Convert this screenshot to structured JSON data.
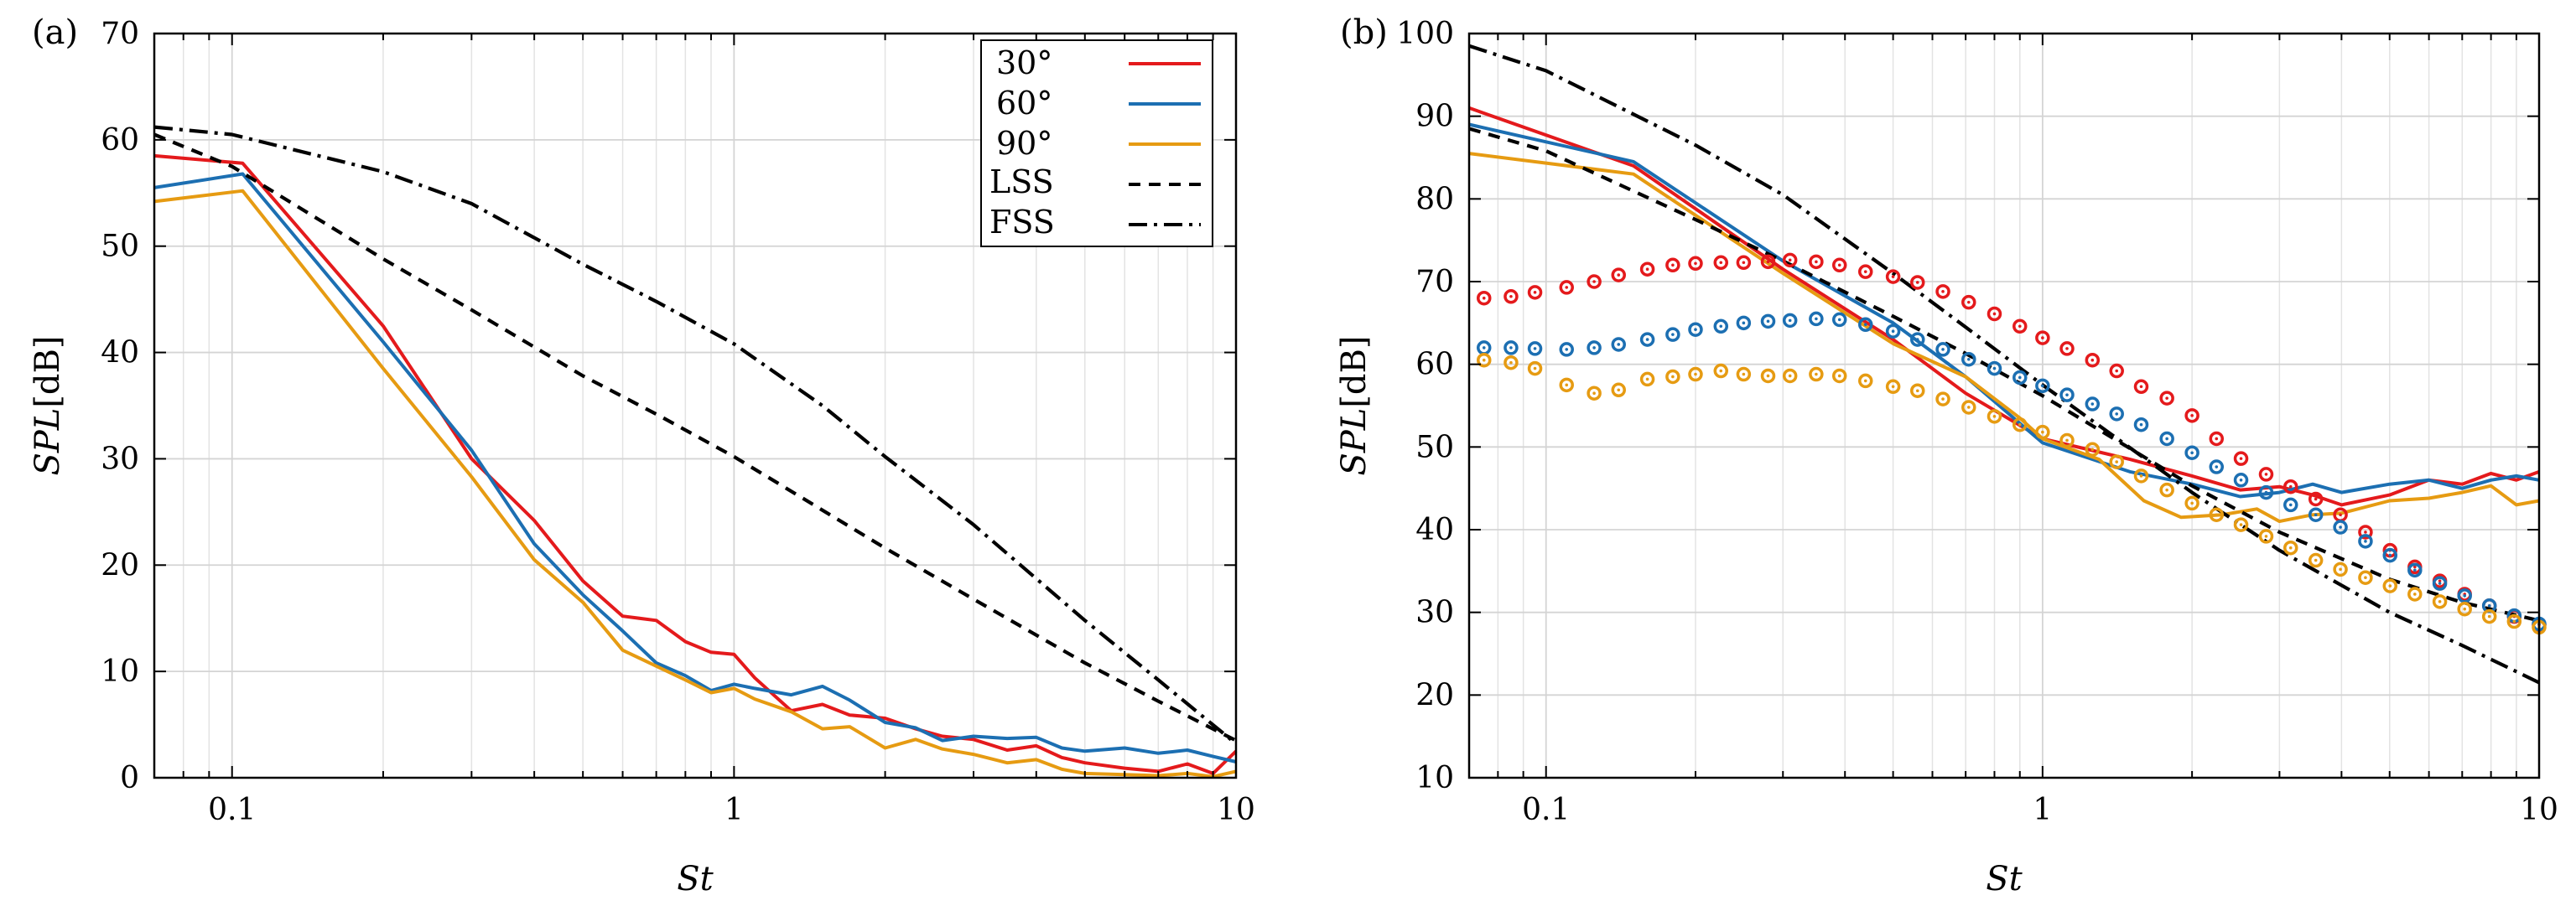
{
  "chart_data": [
    {
      "type": "line",
      "panel_label": "(a)",
      "xlabel": "St",
      "ylabel": "SPL",
      "ylabel_unit": "[dB]",
      "xscale": "log",
      "xlim": [
        0.07,
        10
      ],
      "ylim": [
        0,
        70
      ],
      "xticks": [
        {
          "v": 0.1,
          "label": "0.1"
        },
        {
          "v": 1,
          "label": "1"
        },
        {
          "v": 10,
          "label": "10"
        }
      ],
      "yticks": [
        {
          "v": 0,
          "label": "0"
        },
        {
          "v": 10,
          "label": "10"
        },
        {
          "v": 20,
          "label": "20"
        },
        {
          "v": 30,
          "label": "30"
        },
        {
          "v": 40,
          "label": "40"
        },
        {
          "v": 50,
          "label": "50"
        },
        {
          "v": 60,
          "label": "60"
        },
        {
          "v": 70,
          "label": "70"
        }
      ],
      "legend_position": "top-right",
      "series": [
        {
          "name": "30°",
          "color": "#e41a1c",
          "style": "solid",
          "x": [
            0.07,
            0.105,
            0.2,
            0.3,
            0.4,
            0.5,
            0.6,
            0.7,
            0.8,
            0.9,
            1.0,
            1.1,
            1.3,
            1.5,
            1.7,
            2.0,
            2.3,
            2.6,
            3.0,
            3.5,
            4.0,
            4.5,
            5.0,
            6.0,
            7.0,
            8.0,
            9.0,
            10.0
          ],
          "y": [
            58.5,
            57.8,
            42.5,
            30.0,
            24.2,
            18.5,
            15.2,
            14.8,
            12.8,
            11.8,
            11.6,
            9.4,
            6.3,
            6.9,
            5.9,
            5.6,
            4.6,
            3.9,
            3.6,
            2.6,
            3.0,
            1.9,
            1.4,
            0.9,
            0.6,
            1.3,
            0.4,
            2.5
          ]
        },
        {
          "name": "60°",
          "color": "#1c6fb2",
          "style": "solid",
          "x": [
            0.07,
            0.105,
            0.2,
            0.3,
            0.4,
            0.5,
            0.6,
            0.7,
            0.8,
            0.9,
            1.0,
            1.1,
            1.3,
            1.5,
            1.7,
            2.0,
            2.3,
            2.6,
            3.0,
            3.5,
            4.0,
            4.5,
            5.0,
            6.0,
            7.0,
            8.0,
            9.0,
            10.0
          ],
          "y": [
            55.5,
            56.8,
            41.0,
            30.8,
            22.0,
            17.2,
            13.8,
            10.8,
            9.6,
            8.2,
            8.8,
            8.4,
            7.8,
            8.6,
            7.3,
            5.2,
            4.7,
            3.5,
            3.9,
            3.7,
            3.8,
            2.8,
            2.5,
            2.8,
            2.3,
            2.6,
            2.0,
            1.5
          ]
        },
        {
          "name": "90°",
          "color": "#e69b12",
          "style": "solid",
          "x": [
            0.07,
            0.105,
            0.2,
            0.3,
            0.4,
            0.5,
            0.6,
            0.7,
            0.8,
            0.9,
            1.0,
            1.1,
            1.3,
            1.5,
            1.7,
            2.0,
            2.3,
            2.6,
            3.0,
            3.5,
            4.0,
            4.5,
            5.0,
            6.0,
            7.0,
            8.0,
            9.0,
            10.0
          ],
          "y": [
            54.2,
            55.2,
            38.5,
            28.3,
            20.5,
            16.5,
            12.0,
            10.5,
            9.2,
            8.0,
            8.4,
            7.4,
            6.2,
            4.6,
            4.8,
            2.8,
            3.6,
            2.7,
            2.2,
            1.4,
            1.7,
            0.8,
            0.4,
            0.3,
            0.2,
            0.4,
            0.1,
            0.6
          ]
        },
        {
          "name": "LSS",
          "color": "#000000",
          "style": "dashed",
          "x": [
            0.07,
            0.1,
            0.2,
            0.3,
            0.5,
            0.7,
            1.0,
            2.0,
            3.0,
            5.0,
            7.0,
            10.0
          ],
          "y": [
            60.5,
            57.5,
            48.8,
            44.0,
            37.8,
            34.2,
            30.2,
            21.6,
            16.8,
            10.8,
            7.2,
            3.5
          ]
        },
        {
          "name": "FSS",
          "color": "#000000",
          "style": "dashdot",
          "x": [
            0.07,
            0.1,
            0.2,
            0.3,
            0.5,
            0.7,
            1.0,
            1.5,
            2.0,
            3.0,
            5.0,
            7.0,
            10.0
          ],
          "y": [
            61.2,
            60.5,
            57.0,
            54.0,
            48.3,
            44.8,
            40.8,
            35.0,
            30.2,
            23.8,
            14.8,
            9.2,
            3.2
          ]
        }
      ]
    },
    {
      "type": "line",
      "panel_label": "(b)",
      "xlabel": "St",
      "ylabel": "SPL",
      "ylabel_unit": "[dB]",
      "xscale": "log",
      "xlim": [
        0.07,
        10
      ],
      "ylim": [
        10,
        100
      ],
      "xticks": [
        {
          "v": 0.1,
          "label": "0.1"
        },
        {
          "v": 1,
          "label": "1"
        },
        {
          "v": 10,
          "label": "10"
        }
      ],
      "yticks": [
        {
          "v": 10,
          "label": "10"
        },
        {
          "v": 20,
          "label": "20"
        },
        {
          "v": 30,
          "label": "30"
        },
        {
          "v": 40,
          "label": "40"
        },
        {
          "v": 50,
          "label": "50"
        },
        {
          "v": 60,
          "label": "60"
        },
        {
          "v": 70,
          "label": "70"
        },
        {
          "v": 80,
          "label": "80"
        },
        {
          "v": 90,
          "label": "90"
        },
        {
          "v": 100,
          "label": "100"
        }
      ],
      "series": [
        {
          "name": "30°",
          "color": "#e41a1c",
          "style": "solid",
          "x": [
            0.07,
            0.15,
            0.3,
            0.5,
            0.7,
            1.0,
            1.5,
            2.0,
            2.5,
            3.0,
            3.5,
            4.0,
            5.0,
            6.0,
            7.0,
            8.0,
            9.0,
            10.0
          ],
          "y": [
            91.0,
            84.0,
            71.5,
            63.0,
            56.5,
            51.0,
            48.5,
            46.5,
            44.8,
            45.2,
            44.2,
            43.0,
            44.2,
            46.0,
            45.5,
            46.8,
            46.0,
            47.0
          ]
        },
        {
          "name": "60°",
          "color": "#1c6fb2",
          "style": "solid",
          "x": [
            0.07,
            0.15,
            0.3,
            0.5,
            0.7,
            1.0,
            1.5,
            2.0,
            2.5,
            3.0,
            3.5,
            4.0,
            5.0,
            6.0,
            7.0,
            8.0,
            9.0,
            10.0
          ],
          "y": [
            89.0,
            84.5,
            72.5,
            65.0,
            58.5,
            50.5,
            47.0,
            45.5,
            44.0,
            44.5,
            45.5,
            44.5,
            45.5,
            46.0,
            45.0,
            46.0,
            46.5,
            46.0
          ]
        },
        {
          "name": "90°",
          "color": "#e69b12",
          "style": "solid",
          "x": [
            0.07,
            0.15,
            0.3,
            0.5,
            0.7,
            0.9,
            1.0,
            1.3,
            1.6,
            1.9,
            2.3,
            2.7,
            3.0,
            3.5,
            4.0,
            5.0,
            6.0,
            7.0,
            8.0,
            9.0,
            10.0
          ],
          "y": [
            85.5,
            83.0,
            71.0,
            62.5,
            58.5,
            53.5,
            51.0,
            48.5,
            43.5,
            41.5,
            41.8,
            42.5,
            41.0,
            41.8,
            42.0,
            43.5,
            43.8,
            44.5,
            45.3,
            43.0,
            43.5
          ]
        },
        {
          "name": "LSS",
          "color": "#000000",
          "style": "dashed",
          "x": [
            0.07,
            0.1,
            0.2,
            0.3,
            0.5,
            0.7,
            1.0,
            2.0,
            3.0,
            5.0,
            7.0,
            10.0
          ],
          "y": [
            88.5,
            85.8,
            77.5,
            72.5,
            65.8,
            61.3,
            56.2,
            45.3,
            39.7,
            34.0,
            31.2,
            29.0
          ]
        },
        {
          "name": "FSS",
          "color": "#000000",
          "style": "dashdot",
          "x": [
            0.07,
            0.1,
            0.2,
            0.3,
            0.5,
            0.7,
            1.0,
            2.0,
            3.0,
            5.0,
            7.0,
            10.0
          ],
          "y": [
            98.5,
            95.5,
            86.5,
            80.5,
            71.0,
            64.5,
            57.5,
            44.5,
            37.5,
            30.0,
            26.0,
            21.5
          ]
        },
        {
          "name": "30° (markers)",
          "color": "#e41a1c",
          "style": "markers",
          "x": [
            0.075,
            0.085,
            0.095,
            0.11,
            0.125,
            0.14,
            0.16,
            0.18,
            0.2,
            0.225,
            0.25,
            0.28,
            0.31,
            0.35,
            0.39,
            0.44,
            0.5,
            0.56,
            0.63,
            0.71,
            0.8,
            0.9,
            1.0,
            1.12,
            1.26,
            1.41,
            1.58,
            1.78,
            2.0,
            2.24,
            2.51,
            2.82,
            3.16,
            3.55,
            3.98,
            4.47,
            5.01,
            5.62,
            6.31,
            7.08,
            7.94,
            8.91,
            10.0
          ],
          "y": [
            68.0,
            68.2,
            68.7,
            69.3,
            70.0,
            70.8,
            71.5,
            72.0,
            72.2,
            72.3,
            72.3,
            72.4,
            72.6,
            72.4,
            72.0,
            71.2,
            70.6,
            69.9,
            68.8,
            67.5,
            66.1,
            64.6,
            63.2,
            61.9,
            60.5,
            59.2,
            57.3,
            55.9,
            53.8,
            51.0,
            48.6,
            46.7,
            45.2,
            43.7,
            41.8,
            39.7,
            37.5,
            35.5,
            33.8,
            32.2,
            30.8,
            29.5,
            28.5
          ]
        },
        {
          "name": "60° (markers)",
          "color": "#1c6fb2",
          "style": "markers",
          "x": [
            0.075,
            0.085,
            0.095,
            0.11,
            0.125,
            0.14,
            0.16,
            0.18,
            0.2,
            0.225,
            0.25,
            0.28,
            0.31,
            0.35,
            0.39,
            0.44,
            0.5,
            0.56,
            0.63,
            0.71,
            0.8,
            0.9,
            1.0,
            1.12,
            1.26,
            1.41,
            1.58,
            1.78,
            2.0,
            2.24,
            2.51,
            2.82,
            3.16,
            3.55,
            3.98,
            4.47,
            5.01,
            5.62,
            6.31,
            7.08,
            7.94,
            8.91,
            10.0
          ],
          "y": [
            62.0,
            62.0,
            61.9,
            61.8,
            62.0,
            62.4,
            63.0,
            63.6,
            64.2,
            64.6,
            65.0,
            65.2,
            65.3,
            65.5,
            65.4,
            64.8,
            64.0,
            63.0,
            61.8,
            60.6,
            59.5,
            58.4,
            57.4,
            56.3,
            55.2,
            54.0,
            52.7,
            51.0,
            49.3,
            47.6,
            46.0,
            44.5,
            43.0,
            41.8,
            40.3,
            38.6,
            36.9,
            35.1,
            33.5,
            32.0,
            30.8,
            29.6,
            28.6
          ]
        },
        {
          "name": "90° (markers)",
          "color": "#e69b12",
          "style": "markers",
          "x": [
            0.075,
            0.085,
            0.095,
            0.11,
            0.125,
            0.14,
            0.16,
            0.18,
            0.2,
            0.225,
            0.25,
            0.28,
            0.31,
            0.35,
            0.39,
            0.44,
            0.5,
            0.56,
            0.63,
            0.71,
            0.8,
            0.9,
            1.0,
            1.12,
            1.26,
            1.41,
            1.58,
            1.78,
            2.0,
            2.24,
            2.51,
            2.82,
            3.16,
            3.55,
            3.98,
            4.47,
            5.01,
            5.62,
            6.31,
            7.08,
            7.94,
            8.91,
            10.0
          ],
          "y": [
            60.5,
            60.2,
            59.5,
            57.5,
            56.5,
            56.9,
            58.2,
            58.5,
            58.8,
            59.2,
            58.8,
            58.6,
            58.6,
            58.8,
            58.6,
            58.0,
            57.3,
            56.8,
            55.8,
            54.8,
            53.7,
            52.7,
            51.8,
            50.8,
            49.7,
            48.2,
            46.5,
            44.8,
            43.2,
            41.8,
            40.6,
            39.2,
            37.8,
            36.3,
            35.2,
            34.2,
            33.2,
            32.2,
            31.3,
            30.4,
            29.5,
            28.9,
            28.2
          ]
        }
      ]
    }
  ]
}
